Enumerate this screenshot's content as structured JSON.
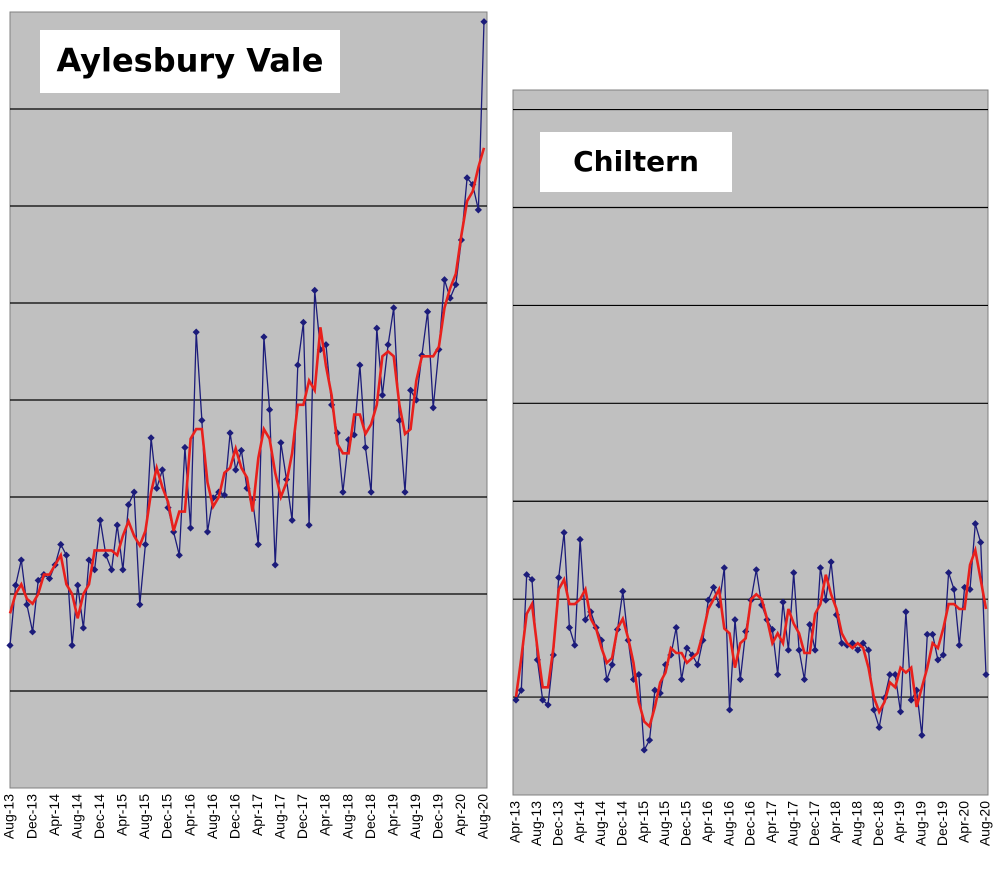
{
  "chart_data": [
    {
      "type": "line",
      "title": "Aylesbury Vale",
      "categories": [
        "Aug-13",
        null,
        null,
        null,
        "Dec-13",
        null,
        null,
        null,
        "Apr-14",
        null,
        null,
        null,
        "Aug-14",
        null,
        null,
        null,
        "Dec-14",
        null,
        null,
        null,
        "Apr-15",
        null,
        null,
        null,
        "Aug-15",
        null,
        null,
        null,
        "Dec-15",
        null,
        null,
        null,
        "Apr-16",
        null,
        null,
        null,
        "Aug-16",
        null,
        null,
        null,
        "Dec-16",
        null,
        null,
        null,
        "Apr-17",
        null,
        null,
        null,
        "Aug-17",
        null,
        null,
        null,
        "Dec-17",
        null,
        null,
        null,
        "Apr-18",
        null,
        null,
        null,
        "Aug-18",
        null,
        null,
        null,
        "Dec-18",
        null,
        null,
        null,
        "Apr-19",
        null,
        null,
        null,
        "Aug-19",
        null,
        null,
        null,
        "Dec-19",
        null,
        null,
        null,
        "Apr-20",
        null,
        null,
        null,
        "Aug-20"
      ],
      "series": [
        {
          "color": "#1c1c7a",
          "marker": "diamond",
          "values": [
            1.47,
            2.09,
            2.35,
            1.89,
            1.61,
            2.14,
            2.2,
            2.16,
            2.3,
            2.51,
            2.4,
            1.47,
            2.09,
            1.65,
            2.35,
            2.25,
            2.76,
            2.4,
            2.25,
            2.71,
            2.25,
            2.92,
            3.05,
            1.89,
            2.51,
            3.61,
            3.09,
            3.28,
            2.89,
            2.64,
            2.4,
            3.51,
            2.68,
            4.7,
            3.79,
            2.64,
            2.99,
            3.05,
            3.02,
            3.66,
            3.28,
            3.48,
            3.09,
            2.97,
            2.51,
            4.65,
            3.9,
            2.3,
            3.56,
            3.18,
            2.76,
            4.36,
            4.8,
            2.71,
            5.13,
            4.52,
            4.57,
            3.95,
            3.66,
            3.05,
            3.59,
            3.64,
            4.36,
            3.51,
            3.05,
            4.74,
            4.05,
            4.57,
            4.95,
            3.79,
            3.05,
            4.1,
            4.0,
            4.46,
            4.91,
            3.92,
            4.52,
            5.24,
            5.05,
            5.19,
            5.65,
            6.29,
            6.22,
            5.96,
            7.9
          ]
        },
        {
          "color": "#e8201c",
          "values": [
            1.8,
            2.0,
            2.1,
            1.95,
            1.9,
            2.0,
            2.2,
            2.2,
            2.3,
            2.4,
            2.1,
            2.0,
            1.75,
            2.0,
            2.1,
            2.45,
            2.45,
            2.45,
            2.45,
            2.4,
            2.6,
            2.75,
            2.6,
            2.5,
            2.65,
            3.05,
            3.3,
            3.1,
            2.95,
            2.65,
            2.85,
            2.85,
            3.6,
            3.7,
            3.7,
            3.15,
            2.9,
            3.0,
            3.25,
            3.3,
            3.5,
            3.3,
            3.2,
            2.85,
            3.4,
            3.7,
            3.6,
            3.25,
            3.0,
            3.15,
            3.45,
            3.95,
            3.95,
            4.2,
            4.1,
            4.75,
            4.35,
            4.05,
            3.55,
            3.45,
            3.45,
            3.85,
            3.85,
            3.65,
            3.75,
            3.95,
            4.45,
            4.5,
            4.45,
            3.95,
            3.65,
            3.7,
            4.2,
            4.45,
            4.45,
            4.45,
            4.55,
            4.95,
            5.15,
            5.3,
            5.7,
            6.05,
            6.15,
            6.4,
            6.6
          ]
        }
      ],
      "ylim": [
        0,
        8
      ],
      "yticks": [
        1,
        2,
        3,
        4,
        5,
        6,
        7
      ],
      "grid": true,
      "background": "#c0c0c0"
    },
    {
      "type": "line",
      "title": "Chiltern",
      "categories": [
        "Apr-13",
        null,
        null,
        null,
        "Aug-13",
        null,
        null,
        null,
        "Dec-13",
        null,
        null,
        null,
        "Apr-14",
        null,
        null,
        null,
        "Aug-14",
        null,
        null,
        null,
        "Dec-14",
        null,
        null,
        null,
        "Apr-15",
        null,
        null,
        null,
        "Aug-15",
        null,
        null,
        null,
        "Dec-15",
        null,
        null,
        null,
        "Apr-16",
        null,
        null,
        null,
        "Aug-16",
        null,
        null,
        null,
        "Dec-16",
        null,
        null,
        null,
        "Apr-17",
        null,
        null,
        null,
        "Aug-17",
        null,
        null,
        null,
        "Dec-17",
        null,
        null,
        null,
        "Apr-18",
        null,
        null,
        null,
        "Aug-18",
        null,
        null,
        null,
        "Dec-18",
        null,
        null,
        null,
        "Apr-19",
        null,
        null,
        null,
        "Aug-19",
        null,
        null,
        null,
        "Dec-19",
        null,
        null,
        null,
        "Apr-20",
        null,
        null,
        null,
        "Aug-20"
      ],
      "series": [
        {
          "color": "#1c1c7a",
          "marker": "diamond",
          "values": [
            0.97,
            1.07,
            2.25,
            2.2,
            1.38,
            0.97,
            0.92,
            1.43,
            2.22,
            2.68,
            1.71,
            1.53,
            2.61,
            1.79,
            1.87,
            1.71,
            1.58,
            1.18,
            1.33,
            1.69,
            2.08,
            1.58,
            1.18,
            1.23,
            0.46,
            0.56,
            1.07,
            1.04,
            1.33,
            1.43,
            1.71,
            1.18,
            1.5,
            1.43,
            1.33,
            1.58,
            1.99,
            2.12,
            1.94,
            2.32,
            0.87,
            1.79,
            1.18,
            1.67,
            1.99,
            2.3,
            1.94,
            1.79,
            1.69,
            1.23,
            1.97,
            1.48,
            2.27,
            1.48,
            1.18,
            1.74,
            1.48,
            2.32,
            1.99,
            2.38,
            1.84,
            1.55,
            1.53,
            1.55,
            1.48,
            1.55,
            1.48,
            0.87,
            0.69,
            0.99,
            1.23,
            1.23,
            0.85,
            1.87,
            0.97,
            1.07,
            0.61,
            1.64,
            1.64,
            1.38,
            1.43,
            2.27,
            2.1,
            1.53,
            2.12,
            2.1,
            2.77,
            2.58,
            1.23
          ]
        },
        {
          "color": "#e8201c",
          "values": [
            1.0,
            1.4,
            1.85,
            1.95,
            1.5,
            1.1,
            1.1,
            1.5,
            2.1,
            2.2,
            1.95,
            1.95,
            2.0,
            2.1,
            1.8,
            1.7,
            1.5,
            1.35,
            1.4,
            1.7,
            1.8,
            1.6,
            1.35,
            0.95,
            0.75,
            0.7,
            0.9,
            1.15,
            1.25,
            1.5,
            1.45,
            1.45,
            1.35,
            1.4,
            1.45,
            1.65,
            1.9,
            2.0,
            2.1,
            1.7,
            1.65,
            1.3,
            1.55,
            1.6,
            2.0,
            2.05,
            2.0,
            1.8,
            1.55,
            1.65,
            1.55,
            1.9,
            1.75,
            1.65,
            1.45,
            1.45,
            1.85,
            1.95,
            2.25,
            2.05,
            1.9,
            1.65,
            1.55,
            1.5,
            1.55,
            1.5,
            1.3,
            1.0,
            0.85,
            0.95,
            1.15,
            1.1,
            1.3,
            1.25,
            1.3,
            0.9,
            1.1,
            1.3,
            1.55,
            1.5,
            1.7,
            1.95,
            1.95,
            1.9,
            1.9,
            2.35,
            2.5,
            2.2,
            1.9
          ]
        }
      ],
      "ylim": [
        0,
        7.2
      ],
      "yticks": [
        1,
        2,
        3,
        4,
        5,
        6,
        7
      ],
      "grid": true,
      "background": "#c0c0c0"
    }
  ]
}
